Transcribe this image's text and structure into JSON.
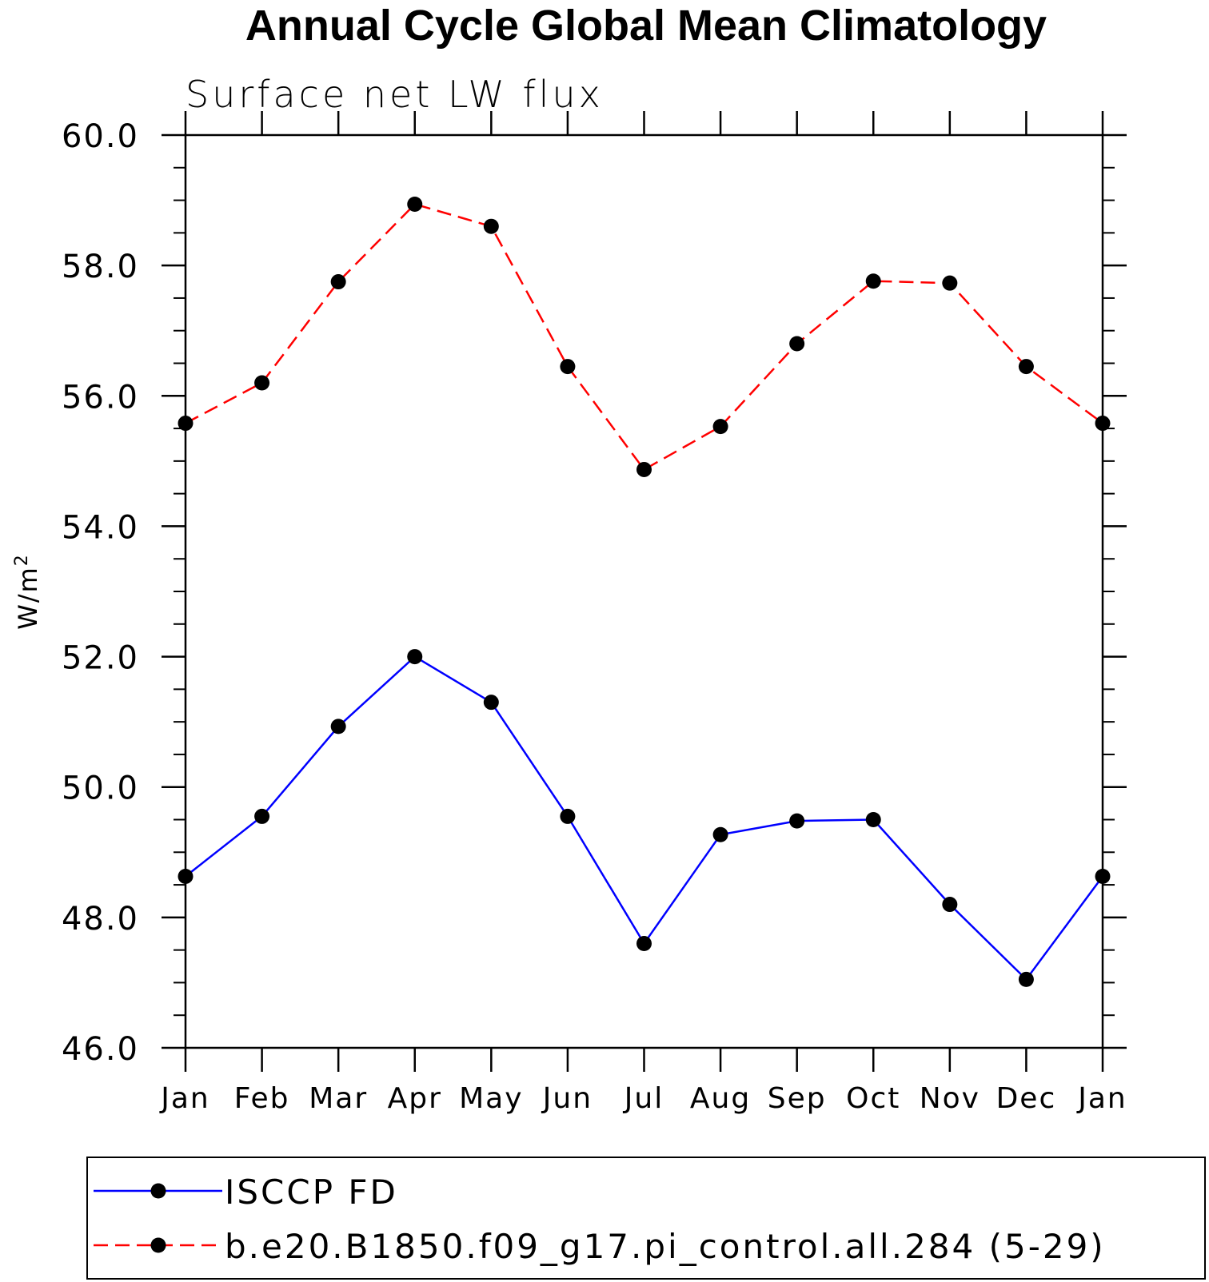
{
  "chart_data": {
    "type": "line",
    "title": "Annual Cycle Global Mean Climatology",
    "subtitle": "Surface net LW flux",
    "ylabel": "W/m",
    "ylabel_superscript": "2",
    "ylim": [
      46.0,
      60.0
    ],
    "yticks": [
      "46.0",
      "48.0",
      "50.0",
      "52.0",
      "54.0",
      "56.0",
      "58.0",
      "60.0"
    ],
    "ytick_values": [
      46,
      48,
      50,
      52,
      54,
      56,
      58,
      60
    ],
    "categories": [
      "Jan",
      "Feb",
      "Mar",
      "Apr",
      "May",
      "Jun",
      "Jul",
      "Aug",
      "Sep",
      "Oct",
      "Nov",
      "Dec",
      "Jan"
    ],
    "series": [
      {
        "name": "ISCCP FD",
        "color": "#0000ff",
        "dash": "solid",
        "values": [
          48.63,
          49.55,
          50.93,
          52.0,
          51.3,
          49.55,
          47.6,
          49.27,
          49.48,
          49.5,
          48.2,
          47.05,
          48.63
        ]
      },
      {
        "name": "b.e20.B1850.f09_g17.pi_control.all.284 (5-29)",
        "color": "#ff0000",
        "dash": "dashed",
        "values": [
          55.58,
          56.2,
          57.75,
          58.94,
          58.6,
          56.45,
          54.87,
          55.53,
          56.8,
          57.76,
          57.73,
          56.45,
          55.58
        ]
      }
    ],
    "legend_location": "bottom"
  }
}
